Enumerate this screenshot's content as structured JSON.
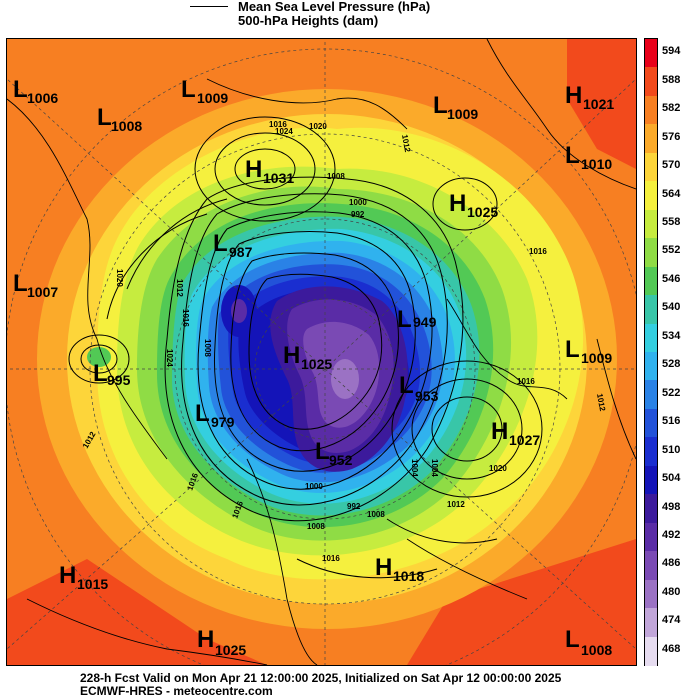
{
  "legend": {
    "line1": "Mean Sea Level Pressure (hPa)",
    "line2": "500-hPa Heights (dam)"
  },
  "colorbar": {
    "levels": [
      "594",
      "588",
      "582",
      "576",
      "570",
      "564",
      "558",
      "552",
      "546",
      "540",
      "534",
      "528",
      "522",
      "516",
      "510",
      "504",
      "498",
      "492",
      "486",
      "480",
      "474",
      "468"
    ],
    "colors": [
      "#e8001a",
      "#f24a1c",
      "#f77f22",
      "#fbaa2a",
      "#fdd53a",
      "#f5f03e",
      "#c6ec3f",
      "#8fdc45",
      "#52c955",
      "#38c6a8",
      "#34cfe0",
      "#30b2ee",
      "#2a82e6",
      "#2252d9",
      "#1a2ed0",
      "#1414b8",
      "#3c1a9c",
      "#5a2ca6",
      "#7a4ab4",
      "#9b72c4",
      "#c1a6d9",
      "#e6dcf0"
    ]
  },
  "systems": [
    {
      "type": "L",
      "value": "1006"
    },
    {
      "type": "L",
      "value": "1009"
    },
    {
      "type": "L",
      "value": "1008"
    },
    {
      "type": "L",
      "value": "1009"
    },
    {
      "type": "H",
      "value": "1021"
    },
    {
      "type": "H",
      "value": "1031"
    },
    {
      "type": "L",
      "value": "1010"
    },
    {
      "type": "H",
      "value": "1025"
    },
    {
      "type": "L",
      "value": "987"
    },
    {
      "type": "L",
      "value": "1007"
    },
    {
      "type": "L",
      "value": "949"
    },
    {
      "type": "L",
      "value": "995"
    },
    {
      "type": "H",
      "value": "1025"
    },
    {
      "type": "L",
      "value": "1009"
    },
    {
      "type": "L",
      "value": "953"
    },
    {
      "type": "L",
      "value": "979"
    },
    {
      "type": "H",
      "value": "1027"
    },
    {
      "type": "L",
      "value": "952"
    },
    {
      "type": "H",
      "value": "1015"
    },
    {
      "type": "H",
      "value": "1018"
    },
    {
      "type": "H",
      "value": "1025"
    },
    {
      "type": "L",
      "value": "1008"
    }
  ],
  "contour_labels": [
    "1016",
    "1024",
    "1020",
    "1012",
    "1008",
    "1000",
    "992",
    "1016",
    "1012",
    "1016",
    "1024",
    "1008",
    "1020",
    "1016",
    "1012",
    "1008",
    "1000",
    "1004",
    "1012",
    "1020",
    "1016",
    "1008",
    "992",
    "1004",
    "1016",
    "1012",
    "1016"
  ],
  "footer": {
    "line1": "228-h Fcst Valid on Mon Apr 21 12:00:00 2025, Initialized on Sat Apr 12 00:00:00 2025",
    "line2": "ECMWF-HRES - meteocentre.com"
  }
}
